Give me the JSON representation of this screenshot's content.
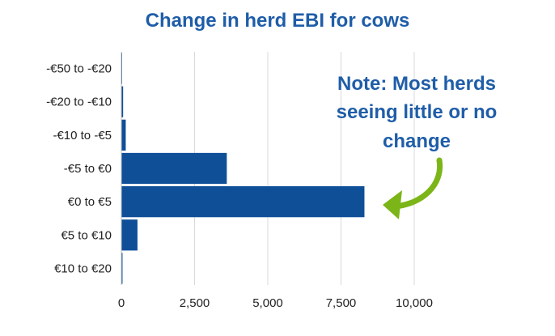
{
  "chart_data": {
    "type": "bar",
    "orientation": "horizontal",
    "title": "Change in herd EBI for cows",
    "categories": [
      "-€50 to -€20",
      "-€20 to -€10",
      "-€10 to -€5",
      "-€5 to €0",
      "€0 to €5",
      "€5 to €10",
      "€10 to €20"
    ],
    "values": [
      20,
      60,
      150,
      3600,
      8300,
      550,
      40
    ],
    "xlim": [
      0,
      10000
    ],
    "xticks": [
      "0",
      "2,500",
      "5,000",
      "7,500",
      "10,000"
    ],
    "xtick_values": [
      0,
      2500,
      5000,
      7500,
      10000
    ],
    "xlabel": "",
    "ylabel": "",
    "grid": "vertical",
    "bar_color": "#0f4f98",
    "annotation": {
      "lines": [
        "Note: Most herds",
        "seeing little or no",
        "change"
      ],
      "color": "#1f5da8",
      "arrow_color": "#7cb518",
      "points_to": "€0 to €5"
    }
  }
}
